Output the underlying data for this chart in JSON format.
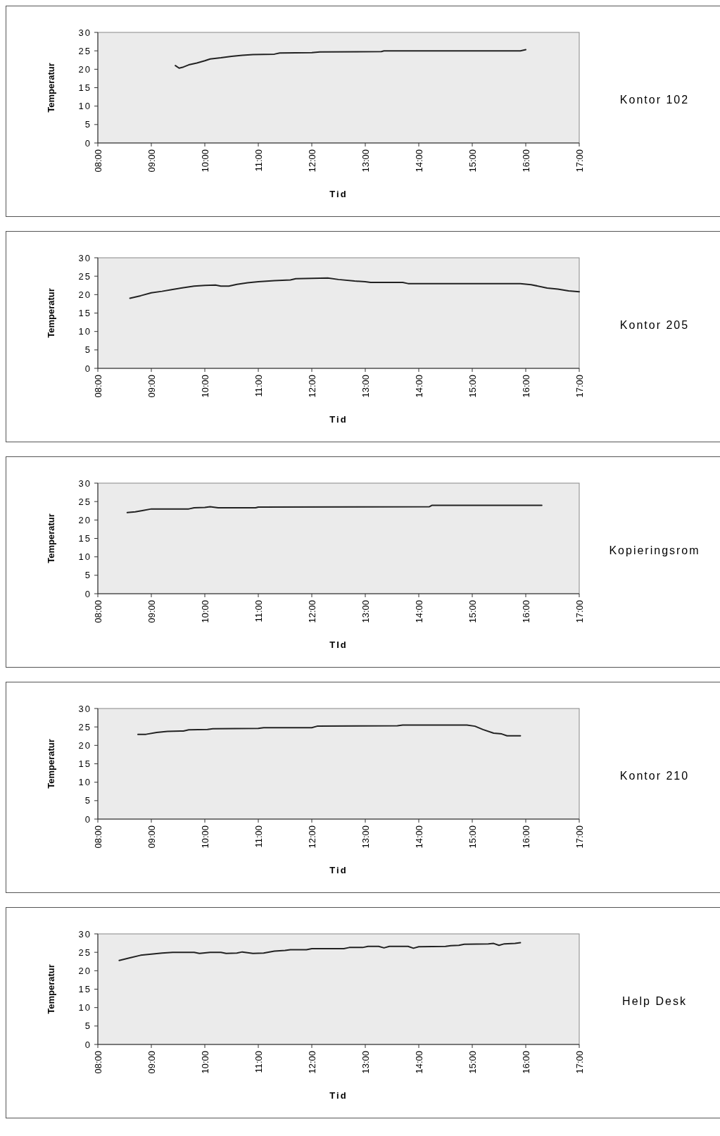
{
  "chart_data": [
    {
      "type": "line",
      "annotations": [
        "Kontor 102"
      ],
      "xlabel": "Tid",
      "ylabel": "Temperatur",
      "xlim": [
        8,
        17
      ],
      "ylim": [
        0,
        30
      ],
      "yticks": [
        0,
        5,
        10,
        15,
        20,
        25,
        30
      ],
      "xticks": [
        {
          "value": 8,
          "label": "08:00"
        },
        {
          "value": 9,
          "label": "09:00"
        },
        {
          "value": 10,
          "label": "10:00"
        },
        {
          "value": 11,
          "label": "11:00"
        },
        {
          "value": 12,
          "label": "12:00"
        },
        {
          "value": 13,
          "label": "13:00"
        },
        {
          "value": 14,
          "label": "14:00"
        },
        {
          "value": 15,
          "label": "15:00"
        },
        {
          "value": 16,
          "label": "16:00"
        },
        {
          "value": 17,
          "label": "17:00"
        }
      ],
      "marker": "none",
      "line_style": "solid",
      "legend": false,
      "series": [
        {
          "color": "#222222",
          "x": [
            9.45,
            9.52,
            9.6,
            9.7,
            9.85,
            10,
            10.1,
            10.3,
            10.5,
            10.7,
            10.9,
            11.3,
            11.4,
            12,
            12.15,
            13.3,
            13.35,
            14,
            15,
            15.9,
            16
          ],
          "values": [
            21,
            20.3,
            20.6,
            21.2,
            21.7,
            22.3,
            22.8,
            23.1,
            23.5,
            23.8,
            24,
            24.1,
            24.4,
            24.5,
            24.7,
            24.8,
            25,
            25,
            25,
            25,
            25.3
          ]
        }
      ]
    },
    {
      "type": "line",
      "annotations": [
        "Kontor 205"
      ],
      "xlabel": "Tid",
      "ylabel": "Temperatur",
      "xlim": [
        8,
        17
      ],
      "ylim": [
        0,
        30
      ],
      "yticks": [
        0,
        5,
        10,
        15,
        20,
        25,
        30
      ],
      "xticks": [
        {
          "value": 8,
          "label": "08:00"
        },
        {
          "value": 9,
          "label": "09:00"
        },
        {
          "value": 10,
          "label": "10:00"
        },
        {
          "value": 11,
          "label": "11:00"
        },
        {
          "value": 12,
          "label": "12:00"
        },
        {
          "value": 13,
          "label": "13:00"
        },
        {
          "value": 14,
          "label": "14:00"
        },
        {
          "value": 15,
          "label": "15:00"
        },
        {
          "value": 16,
          "label": "16:00"
        },
        {
          "value": 17,
          "label": "17:00"
        }
      ],
      "marker": "none",
      "line_style": "solid",
      "legend": false,
      "series": [
        {
          "color": "#222222",
          "x": [
            8.6,
            8.8,
            9,
            9.2,
            9.4,
            9.6,
            9.8,
            10,
            10.2,
            10.3,
            10.45,
            10.6,
            10.8,
            11,
            11.3,
            11.6,
            11.7,
            12,
            12.3,
            12.5,
            12.8,
            13,
            13.1,
            13.7,
            13.8,
            15,
            15.9,
            16.1,
            16.4,
            16.6,
            16.8,
            17
          ],
          "values": [
            19,
            19.7,
            20.5,
            20.9,
            21.4,
            21.9,
            22.3,
            22.5,
            22.6,
            22.3,
            22.3,
            22.8,
            23.2,
            23.5,
            23.8,
            24,
            24.3,
            24.4,
            24.5,
            24.1,
            23.7,
            23.5,
            23.3,
            23.3,
            23,
            23,
            23,
            22.7,
            21.8,
            21.5,
            21,
            20.8
          ]
        }
      ]
    },
    {
      "type": "line",
      "annotations": [
        "Kopieringsrom"
      ],
      "xlabel": "TId",
      "ylabel": "Temperatur",
      "xlim": [
        8,
        17
      ],
      "ylim": [
        0,
        30
      ],
      "yticks": [
        0,
        5,
        10,
        15,
        20,
        25,
        30
      ],
      "xticks": [
        {
          "value": 8,
          "label": "08:00"
        },
        {
          "value": 9,
          "label": "09:00"
        },
        {
          "value": 10,
          "label": "10:00"
        },
        {
          "value": 11,
          "label": "11:00"
        },
        {
          "value": 12,
          "label": "12:00"
        },
        {
          "value": 13,
          "label": "13:00"
        },
        {
          "value": 14,
          "label": "14:00"
        },
        {
          "value": 15,
          "label": "15:00"
        },
        {
          "value": 16,
          "label": "16:00"
        },
        {
          "value": 17,
          "label": "17:00"
        }
      ],
      "marker": "none",
      "line_style": "solid",
      "legend": false,
      "series": [
        {
          "color": "#222222",
          "x": [
            8.55,
            8.7,
            8.85,
            9,
            9.7,
            9.8,
            10,
            10.1,
            10.25,
            10.95,
            11,
            14.2,
            14.25,
            16.3
          ],
          "values": [
            22,
            22.2,
            22.6,
            23,
            23,
            23.3,
            23.4,
            23.6,
            23.3,
            23.3,
            23.5,
            23.6,
            24,
            24
          ]
        }
      ]
    },
    {
      "type": "line",
      "annotations": [
        "Kontor 210"
      ],
      "xlabel": "Tid",
      "ylabel": "Temperatur",
      "xlim": [
        8,
        17
      ],
      "ylim": [
        0,
        30
      ],
      "yticks": [
        0,
        5,
        10,
        15,
        20,
        25,
        30
      ],
      "xticks": [
        {
          "value": 8,
          "label": "08:00"
        },
        {
          "value": 9,
          "label": "09:00"
        },
        {
          "value": 10,
          "label": "10:00"
        },
        {
          "value": 11,
          "label": "11:00"
        },
        {
          "value": 12,
          "label": "12:00"
        },
        {
          "value": 13,
          "label": "13:00"
        },
        {
          "value": 14,
          "label": "14:00"
        },
        {
          "value": 15,
          "label": "15:00"
        },
        {
          "value": 16,
          "label": "16:00"
        },
        {
          "value": 17,
          "label": "17:00"
        }
      ],
      "marker": "none",
      "line_style": "solid",
      "legend": false,
      "series": [
        {
          "color": "#222222",
          "x": [
            8.75,
            8.9,
            9.1,
            9.3,
            9.6,
            9.7,
            10.05,
            10.15,
            11,
            11.1,
            12,
            12.1,
            13.6,
            13.7,
            14.9,
            15.05,
            15.2,
            15.4,
            15.55,
            15.65,
            15.9
          ],
          "values": [
            23,
            23,
            23.5,
            23.8,
            23.9,
            24.2,
            24.3,
            24.5,
            24.6,
            24.8,
            24.8,
            25.2,
            25.3,
            25.5,
            25.5,
            25.2,
            24.3,
            23.3,
            23.1,
            22.6,
            22.6
          ]
        }
      ]
    },
    {
      "type": "line",
      "annotations": [
        "Help Desk"
      ],
      "xlabel": "Tid",
      "ylabel": "Temperatur",
      "xlim": [
        8,
        17
      ],
      "ylim": [
        0,
        30
      ],
      "yticks": [
        0,
        5,
        10,
        15,
        20,
        25,
        30
      ],
      "xticks": [
        {
          "value": 8,
          "label": "08:00"
        },
        {
          "value": 9,
          "label": "09:00"
        },
        {
          "value": 10,
          "label": "10:00"
        },
        {
          "value": 11,
          "label": "11:00"
        },
        {
          "value": 12,
          "label": "12:00"
        },
        {
          "value": 13,
          "label": "13:00"
        },
        {
          "value": 14,
          "label": "14:00"
        },
        {
          "value": 15,
          "label": "15:00"
        },
        {
          "value": 16,
          "label": "16:00"
        },
        {
          "value": 17,
          "label": "17:00"
        }
      ],
      "marker": "none",
      "line_style": "solid",
      "legend": false,
      "series": [
        {
          "color": "#222222",
          "x": [
            8.4,
            8.6,
            8.8,
            9,
            9.2,
            9.4,
            9.8,
            9.9,
            10.1,
            10.3,
            10.4,
            10.6,
            10.7,
            10.9,
            11.1,
            11.3,
            11.5,
            11.6,
            11.9,
            12,
            12.6,
            12.7,
            12.95,
            13.05,
            13.25,
            13.35,
            13.45,
            13.8,
            13.9,
            14,
            14.5,
            14.6,
            14.75,
            14.85,
            15.3,
            15.4,
            15.5,
            15.6,
            15.8,
            15.9
          ],
          "values": [
            22.8,
            23.5,
            24.2,
            24.5,
            24.8,
            25,
            25,
            24.7,
            25,
            25,
            24.7,
            24.8,
            25.1,
            24.7,
            24.8,
            25.3,
            25.5,
            25.7,
            25.7,
            26,
            26,
            26.3,
            26.3,
            26.6,
            26.6,
            26.2,
            26.6,
            26.6,
            26.1,
            26.5,
            26.6,
            26.8,
            26.9,
            27.2,
            27.3,
            27.4,
            26.9,
            27.3,
            27.4,
            27.6
          ]
        }
      ]
    }
  ]
}
